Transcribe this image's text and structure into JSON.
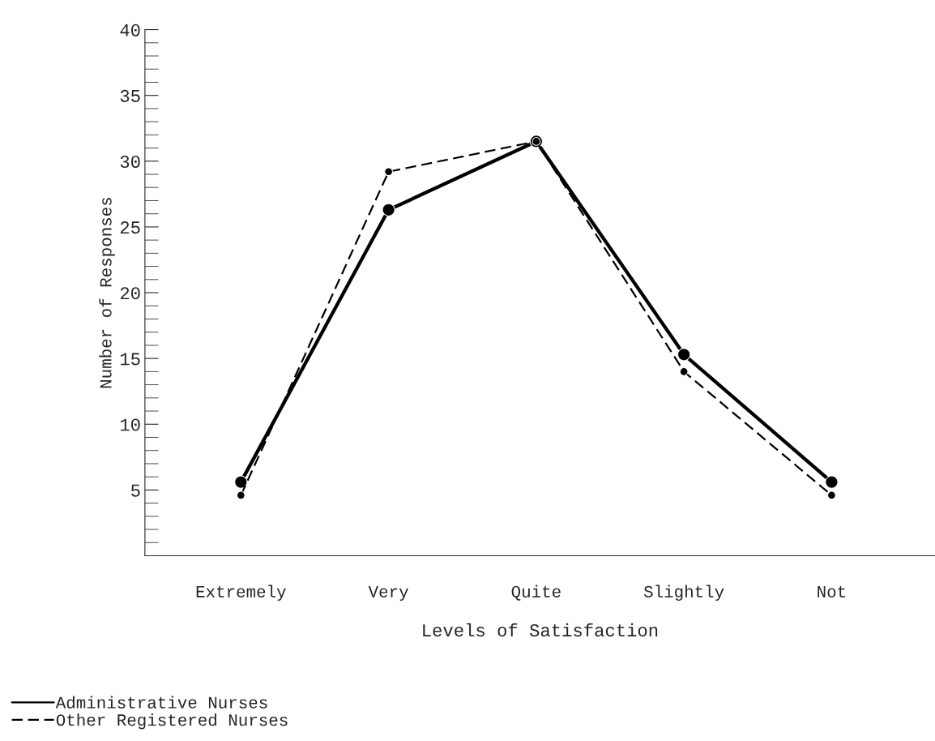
{
  "chart_data": {
    "type": "line",
    "xlabel": "Levels of Satisfaction",
    "ylabel": "Number of Responses",
    "categories": [
      "Extremely",
      "Very",
      "Quite",
      "Slightly",
      "Not"
    ],
    "series": [
      {
        "name": "Administrative Nurses",
        "color": "#000000",
        "line_style": "solid",
        "values": [
          5.6,
          26.3,
          31.5,
          15.3,
          5.6
        ]
      },
      {
        "name": "Other Registered Nurses",
        "color": "#000000",
        "line_style": "dashed",
        "values": [
          4.6,
          29.2,
          31.5,
          14.0,
          4.6
        ]
      }
    ],
    "marker": "circle",
    "ylim": [
      0,
      40
    ],
    "yticks": [
      5,
      10,
      15,
      20,
      25,
      30,
      35,
      40
    ],
    "grid": false,
    "legend": "bottom left"
  }
}
